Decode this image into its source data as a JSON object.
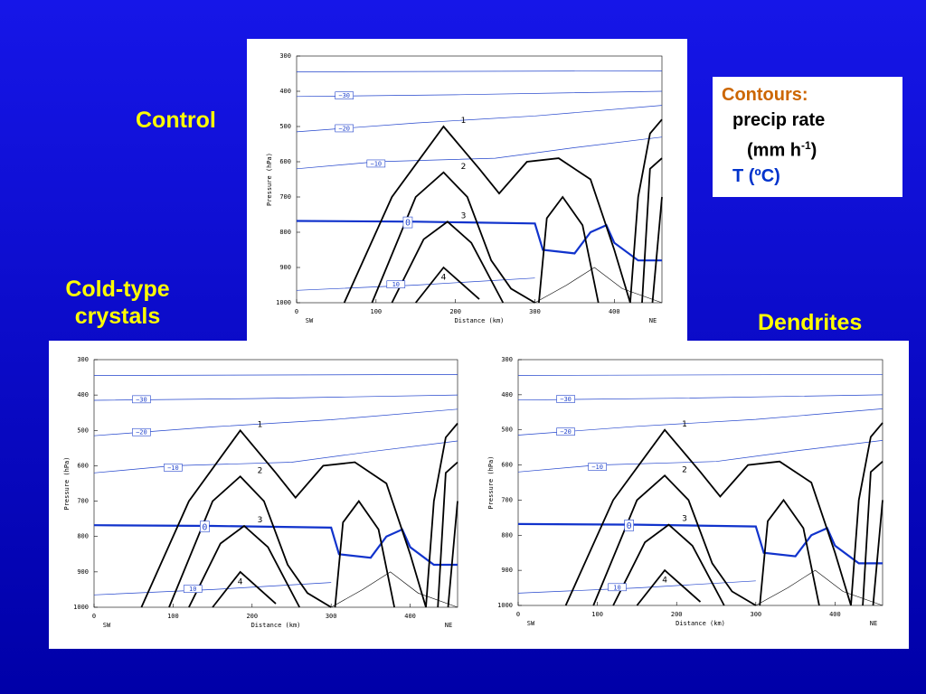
{
  "slide": {
    "labels": {
      "control": "Control",
      "cold_line1": "Cold-type",
      "cold_line2": "crystals",
      "dendrites": "Dendrites"
    },
    "legend": {
      "heading": "Contours:",
      "line1": "precip rate",
      "line2_open": "(mm h",
      "line2_sup": "-1",
      "line2_close": ")",
      "line3": "T (ºC)"
    },
    "axes": {
      "y_title": "Pressure (hPa)",
      "x_title": "Distance (km)",
      "yticks": [
        "300",
        "400",
        "500",
        "600",
        "700",
        "800",
        "900",
        "1000"
      ],
      "xticks": [
        "0",
        "100",
        "200",
        "300",
        "400"
      ],
      "x_left": "SW",
      "x_right": "NE",
      "temperature_labels": [
        "−30",
        "−20",
        "−10",
        "0",
        "10"
      ],
      "precip_labels": [
        "1",
        "2",
        "3",
        "4"
      ]
    }
  }
}
